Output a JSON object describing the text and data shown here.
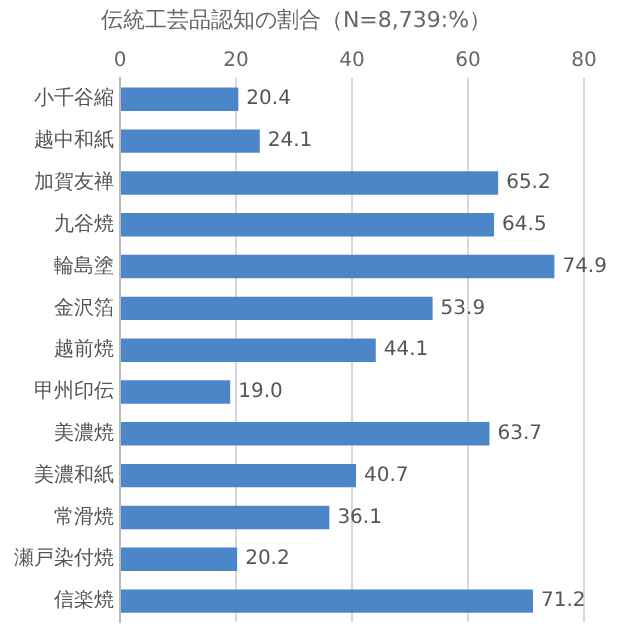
{
  "chart_data": {
    "type": "bar",
    "orientation": "horizontal",
    "title": "伝統工芸品認知の割合（N=8,739:%）",
    "categories": [
      "小千谷縮",
      "越中和紙",
      "加賀友禅",
      "九谷焼",
      "輪島塗",
      "金沢箔",
      "越前焼",
      "甲州印伝",
      "美濃焼",
      "美濃和紙",
      "常滑焼",
      "瀬戸染付焼",
      "信楽焼"
    ],
    "values": [
      20.4,
      24.1,
      65.2,
      64.5,
      74.9,
      53.9,
      44.1,
      19.0,
      63.7,
      40.7,
      36.1,
      20.2,
      71.2
    ],
    "value_labels": [
      "20.4",
      "24.1",
      "65.2",
      "64.5",
      "74.9",
      "53.9",
      "44.1",
      "19.0",
      "63.7",
      "40.7",
      "36.1",
      "20.2",
      "71.2"
    ],
    "color": "#4a86c8",
    "xlim": [
      0,
      80
    ],
    "xticks": [
      0,
      20,
      40,
      60,
      80
    ],
    "grid": "x",
    "legend": false
  }
}
